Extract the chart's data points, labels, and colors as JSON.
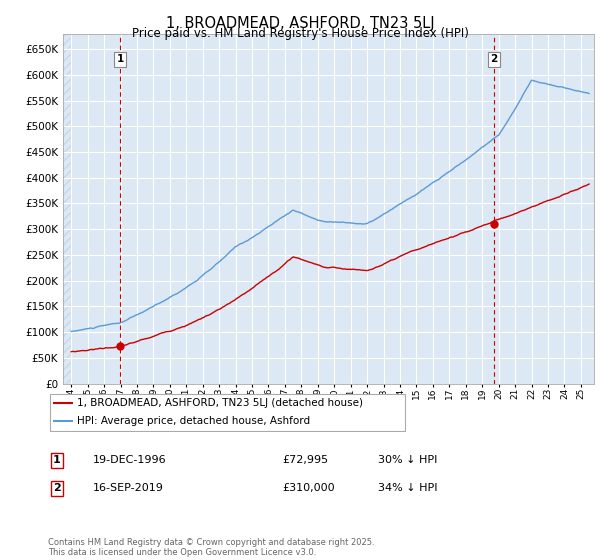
{
  "title": "1, BROADMEAD, ASHFORD, TN23 5LJ",
  "subtitle": "Price paid vs. HM Land Registry's House Price Index (HPI)",
  "ytick_values": [
    0,
    50000,
    100000,
    150000,
    200000,
    250000,
    300000,
    350000,
    400000,
    450000,
    500000,
    550000,
    600000,
    650000
  ],
  "ylim": [
    0,
    680000
  ],
  "xlim_start": 1993.5,
  "xlim_end": 2025.8,
  "sale1_x": 1996.97,
  "sale1_y": 72995,
  "sale2_x": 2019.71,
  "sale2_y": 310000,
  "sale1_label": "1",
  "sale2_label": "2",
  "legend_line1": "1, BROADMEAD, ASHFORD, TN23 5LJ (detached house)",
  "legend_line2": "HPI: Average price, detached house, Ashford",
  "table_row1": [
    "1",
    "19-DEC-1996",
    "£72,995",
    "30% ↓ HPI"
  ],
  "table_row2": [
    "2",
    "16-SEP-2019",
    "£310,000",
    "34% ↓ HPI"
  ],
  "footer": "Contains HM Land Registry data © Crown copyright and database right 2025.\nThis data is licensed under the Open Government Licence v3.0.",
  "hpi_color": "#5b9bd5",
  "price_color": "#cc0000",
  "vline_color": "#cc0000",
  "grid_color": "#c8d8e8",
  "bg_color": "#dce8f4",
  "hatch_color": "#c8d8e8"
}
